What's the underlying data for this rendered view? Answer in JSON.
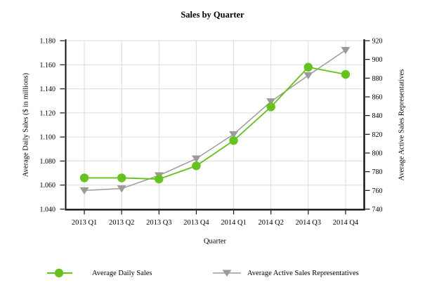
{
  "chart_data": {
    "type": "line",
    "title": "Sales by Quarter",
    "xlabel": "Quarter",
    "categories": [
      "2013 Q1",
      "2013 Q2",
      "2013 Q3",
      "2013 Q4",
      "2014 Q1",
      "2014 Q2",
      "2014 Q3",
      "2014 Q4"
    ],
    "left_axis": {
      "label": "Average Daily Sales ($ in millions)",
      "min": 1.04,
      "max": 1.18,
      "ticks": [
        1.04,
        1.06,
        1.08,
        1.1,
        1.12,
        1.14,
        1.16,
        1.18
      ],
      "tick_labels": [
        "1.040",
        "1.060",
        "1.080",
        "1.100",
        "1.120",
        "1.140",
        "1.160",
        "1.180"
      ]
    },
    "right_axis": {
      "label": "Average Active Sales Representatives",
      "min": 740,
      "max": 920,
      "ticks": [
        740,
        760,
        780,
        800,
        820,
        840,
        860,
        880,
        900,
        920
      ],
      "tick_labels": [
        "740",
        "760",
        "780",
        "800",
        "820",
        "840",
        "860",
        "880",
        "900",
        "920"
      ]
    },
    "series": [
      {
        "name": "Average Daily Sales",
        "axis": "left",
        "marker": "circle",
        "color": "#66C31F",
        "values": [
          1.066,
          1.066,
          1.065,
          1.076,
          1.097,
          1.125,
          1.158,
          1.152
        ]
      },
      {
        "name": "Average Active Sales Representatives",
        "axis": "right",
        "marker": "triangle-down",
        "color": "#9B9B9B",
        "values": [
          760,
          762,
          776,
          794,
          820,
          855,
          883,
          910
        ]
      }
    ],
    "grid": true,
    "legend_position": "bottom"
  },
  "colors": {
    "grid": "#DBDBDB",
    "axis": "#111111",
    "background": "#FFFFFF",
    "text": "#000000"
  }
}
